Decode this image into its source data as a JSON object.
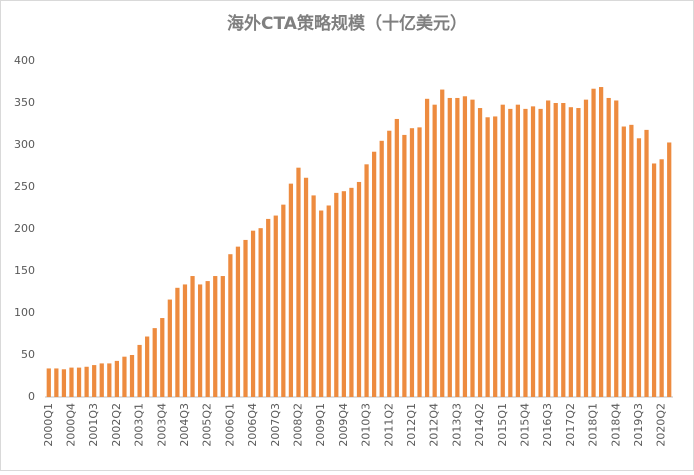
{
  "chart_data": {
    "type": "bar",
    "title": "海外CTA策略规模（十亿美元）",
    "categories": [
      "2000Q1",
      null,
      null,
      "2000Q4",
      null,
      null,
      "2001Q3",
      null,
      null,
      "2002Q2",
      null,
      null,
      "2003Q1",
      null,
      null,
      "2003Q4",
      null,
      null,
      "2004Q3",
      null,
      null,
      "2005Q2",
      null,
      null,
      "2006Q1",
      null,
      null,
      "2006Q4",
      null,
      null,
      "2007Q3",
      null,
      null,
      "2008Q2",
      null,
      null,
      "2009Q1",
      null,
      null,
      "2009Q4",
      null,
      null,
      "2010Q3",
      null,
      null,
      "2011Q2",
      null,
      null,
      "2012Q1",
      null,
      null,
      "2012Q4",
      null,
      null,
      "2013Q3",
      null,
      null,
      "2014Q2",
      null,
      null,
      "2015Q1",
      null,
      null,
      "2015Q4",
      null,
      null,
      "2016Q3",
      null,
      null,
      "2017Q2",
      null,
      null,
      "2018Q1",
      null,
      null,
      "2018Q4",
      null,
      null,
      "2019Q3",
      null,
      null,
      "2020Q2",
      null
    ],
    "values": [
      34,
      34,
      33,
      35,
      35,
      36,
      38,
      40,
      40,
      43,
      48,
      50,
      62,
      72,
      82,
      94,
      116,
      130,
      134,
      144,
      134,
      138,
      144,
      144,
      170,
      179,
      187,
      198,
      201,
      212,
      216,
      229,
      254,
      273,
      261,
      240,
      222,
      228,
      243,
      245,
      249,
      256,
      277,
      292,
      305,
      317,
      331,
      312,
      320,
      321,
      355,
      348,
      366,
      356,
      356,
      358,
      354,
      344,
      333,
      334,
      348,
      343,
      348,
      343,
      346,
      343,
      353,
      350,
      350,
      345,
      344,
      354,
      367,
      369,
      356,
      353,
      322,
      324,
      308,
      318,
      278,
      283,
      303
    ],
    "color": "#ed8b3f",
    "ylim": [
      0,
      400
    ],
    "yticks": [
      0,
      50,
      100,
      150,
      200,
      250,
      300,
      350,
      400
    ],
    "grid": false
  }
}
